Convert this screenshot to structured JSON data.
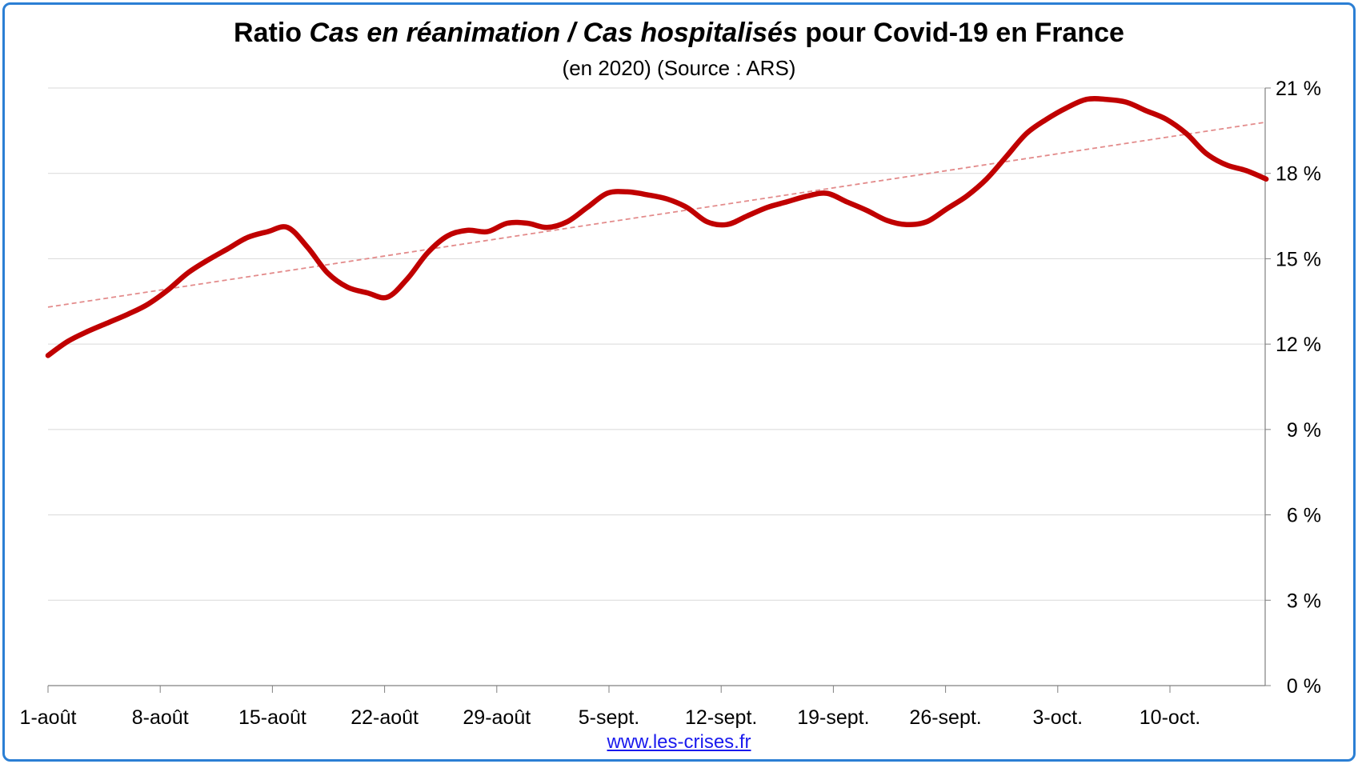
{
  "title": {
    "prefix": "Ratio ",
    "italic_a": "Cas en réanimation",
    "separator": " / ",
    "italic_b": "Cas hospitalisés",
    "suffix": " pour Covid-19 en France"
  },
  "subtitle": "(en 2020) (Source : ARS)",
  "source_link": "www.les-crises.fr",
  "colors": {
    "frame": "#2b7fd4",
    "series": "#c00000",
    "trend": "#e38b8b",
    "grid": "#d9d9d9",
    "link": "#1a1aee"
  },
  "chart_data": {
    "type": "line",
    "title": "Ratio Cas en réanimation / Cas hospitalisés pour Covid-19 en France",
    "subtitle": "(en 2020) (Source : ARS)",
    "xlabel": "",
    "ylabel": "",
    "y_axis_position": "right",
    "ylim": [
      0,
      21
    ],
    "grid": true,
    "legend": "none",
    "y_ticks": [
      {
        "value": 0,
        "label": "0 %"
      },
      {
        "value": 3,
        "label": "3 %"
      },
      {
        "value": 6,
        "label": "6 %"
      },
      {
        "value": 9,
        "label": "9 %"
      },
      {
        "value": 12,
        "label": "12 %"
      },
      {
        "value": 15,
        "label": "15 %"
      },
      {
        "value": 18,
        "label": "18 %"
      },
      {
        "value": 21,
        "label": "21 %"
      }
    ],
    "x_ticks": [
      {
        "day": 0,
        "label": "1-août"
      },
      {
        "day": 7,
        "label": "8-août"
      },
      {
        "day": 14,
        "label": "15-août"
      },
      {
        "day": 21,
        "label": "22-août"
      },
      {
        "day": 28,
        "label": "29-août"
      },
      {
        "day": 35,
        "label": "5-sept."
      },
      {
        "day": 42,
        "label": "12-sept."
      },
      {
        "day": 49,
        "label": "19-sept."
      },
      {
        "day": 56,
        "label": "26-sept."
      },
      {
        "day": 63,
        "label": "3-oct."
      },
      {
        "day": 70,
        "label": "10-oct."
      }
    ],
    "x_max": 76,
    "series": [
      {
        "style": "solid",
        "values": [
          11.6,
          12.1,
          12.45,
          12.75,
          13.05,
          13.4,
          13.9,
          14.5,
          14.95,
          15.35,
          15.75,
          15.95,
          16.1,
          15.4,
          14.5,
          14.0,
          13.8,
          13.65,
          14.3,
          15.2,
          15.8,
          16.0,
          15.95,
          16.25,
          16.25,
          16.1,
          16.3,
          16.8,
          17.3,
          17.35,
          17.25,
          17.1,
          16.8,
          16.3,
          16.2,
          16.5,
          16.8,
          17.0,
          17.2,
          17.3,
          17.0,
          16.7,
          16.35,
          16.2,
          16.3,
          16.75,
          17.2,
          17.8,
          18.6,
          19.4,
          19.9,
          20.3,
          20.6,
          20.6,
          20.5,
          20.2,
          19.9,
          19.4,
          18.7,
          18.3,
          18.1,
          17.8
        ]
      },
      {
        "style": "dashed",
        "values_at_ends": [
          13.3,
          19.8
        ]
      }
    ]
  }
}
